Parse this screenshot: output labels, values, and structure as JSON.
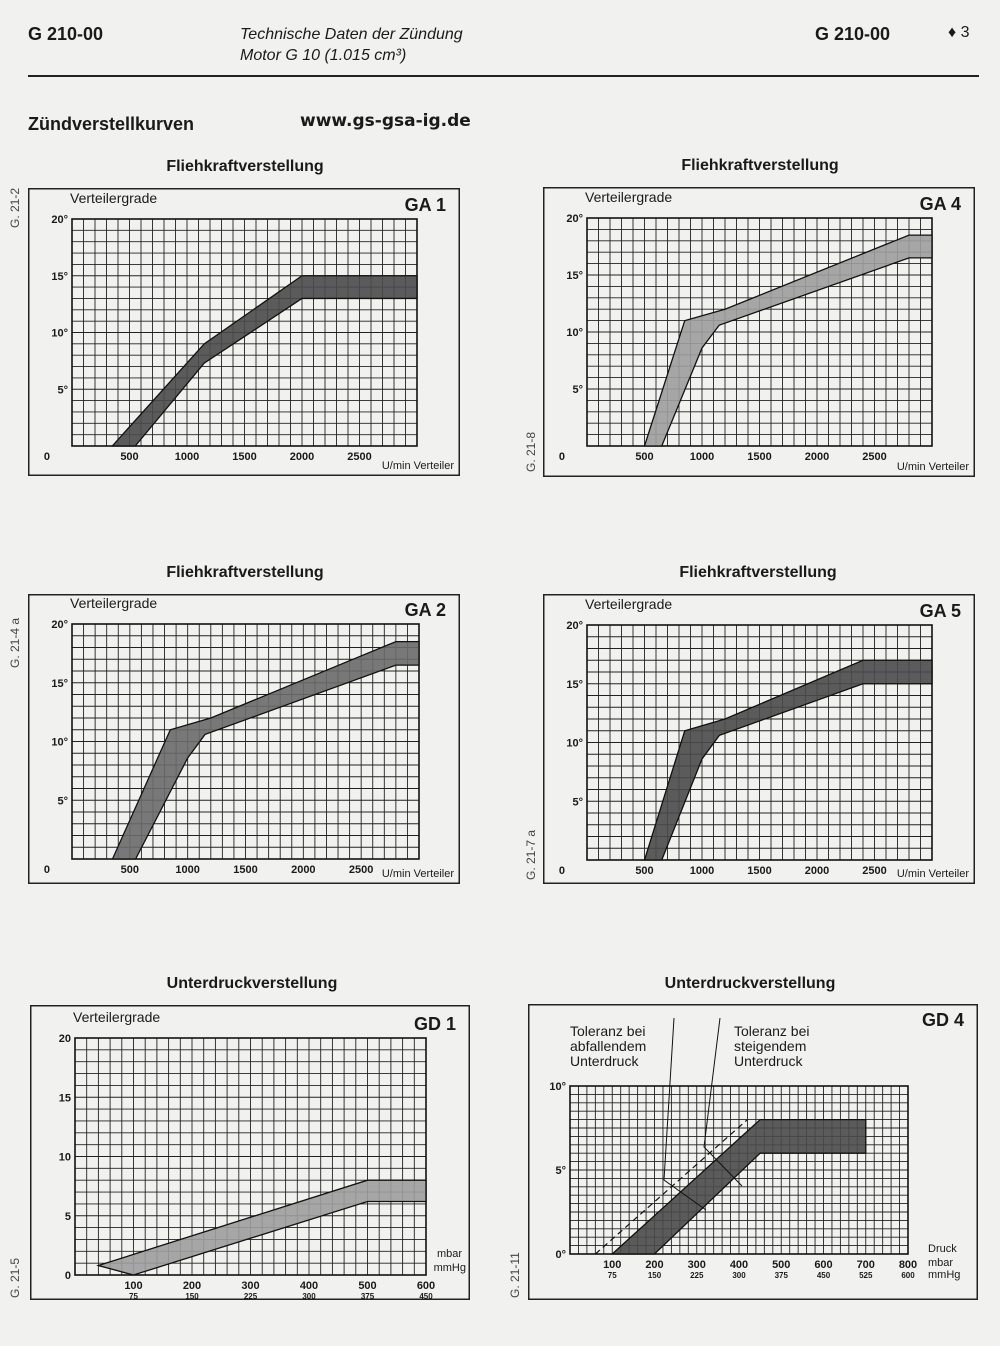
{
  "header": {
    "code_left": "G 210-00",
    "subtitle_line1": "Technische Daten der Zündung",
    "subtitle_line2": "Motor G 10 (1.015 cm³)",
    "code_right": "G 210-00",
    "page_marker": "♦ 3"
  },
  "section_title": "Zündverstellkurven",
  "website": "www.gs-gsa-ig.de",
  "chart_data": [
    {
      "type": "area",
      "id": "GA1",
      "title": "Fliehkraftverstellung",
      "code": "GA 1",
      "ylabel": "Verteilergrade",
      "xlabel": "U/min Verteiler",
      "side_label": "G. 21-2",
      "xlim": [
        0,
        3000
      ],
      "ylim": [
        0,
        20
      ],
      "x_ticks": [
        "0",
        "500",
        "1000",
        "1500",
        "2000",
        "2500"
      ],
      "x_tick_values": [
        0,
        500,
        1000,
        1500,
        2000,
        2500
      ],
      "y_ticks": [
        "20°",
        "15°",
        "10°",
        "5°"
      ],
      "y_tick_values": [
        20,
        15,
        10,
        5
      ],
      "series": [
        {
          "upper": [
            [
              350,
              0
            ],
            [
              1150,
              9
            ],
            [
              2000,
              15
            ],
            [
              3000,
              15
            ]
          ],
          "lower": [
            [
              550,
              0
            ],
            [
              1150,
              7.3
            ],
            [
              2000,
              13
            ],
            [
              3000,
              13
            ]
          ],
          "shade": "dark"
        }
      ]
    },
    {
      "type": "area",
      "id": "GA4",
      "title": "Fliehkraftverstellung",
      "code": "GA 4",
      "ylabel": "Verteilergrade",
      "xlabel": "U/min Verteiler",
      "side_label": "G. 21-8",
      "xlim": [
        0,
        3000
      ],
      "ylim": [
        0,
        20
      ],
      "x_ticks": [
        "0",
        "500",
        "1000",
        "1500",
        "2000",
        "2500"
      ],
      "x_tick_values": [
        0,
        500,
        1000,
        1500,
        2000,
        2500
      ],
      "y_ticks": [
        "20°",
        "15°",
        "10°",
        "5°"
      ],
      "y_tick_values": [
        20,
        15,
        10,
        5
      ],
      "series": [
        {
          "upper": [
            [
              500,
              0
            ],
            [
              850,
              11
            ],
            [
              1200,
              12
            ],
            [
              2800,
              18.5
            ],
            [
              3000,
              18.5
            ]
          ],
          "lower": [
            [
              650,
              0
            ],
            [
              1000,
              8.6
            ],
            [
              1150,
              10.6
            ],
            [
              2800,
              16.5
            ],
            [
              3000,
              16.5
            ]
          ],
          "shade": "light"
        }
      ]
    },
    {
      "type": "area",
      "id": "GA2",
      "title": "Fliehkraftverstellung",
      "code": "GA 2",
      "ylabel": "Verteilergrade",
      "xlabel": "U/min Verteiler",
      "side_label": "G. 21-4 a",
      "xlim": [
        0,
        3000
      ],
      "ylim": [
        0,
        20
      ],
      "x_ticks": [
        "0",
        "500",
        "1000",
        "1500",
        "2000",
        "2500"
      ],
      "x_tick_values": [
        0,
        500,
        1000,
        1500,
        2000,
        2500
      ],
      "y_ticks": [
        "20°",
        "15°",
        "10°",
        "5°"
      ],
      "y_tick_values": [
        20,
        15,
        10,
        5
      ],
      "series": [
        {
          "upper": [
            [
              350,
              0
            ],
            [
              850,
              11
            ],
            [
              1200,
              12
            ],
            [
              2800,
              18.5
            ],
            [
              3000,
              18.5
            ]
          ],
          "lower": [
            [
              550,
              0
            ],
            [
              1000,
              8.6
            ],
            [
              1150,
              10.6
            ],
            [
              2800,
              16.5
            ],
            [
              3000,
              16.5
            ]
          ],
          "shade": "mid"
        }
      ]
    },
    {
      "type": "area",
      "id": "GA5",
      "title": "Fliehkraftverstellung",
      "code": "GA 5",
      "ylabel": "Verteilergrade",
      "xlabel": "U/min Verteiler",
      "side_label": "G. 21-7 a",
      "xlim": [
        0,
        3000
      ],
      "ylim": [
        0,
        20
      ],
      "x_ticks": [
        "0",
        "500",
        "1000",
        "1500",
        "2000",
        "2500"
      ],
      "x_tick_values": [
        0,
        500,
        1000,
        1500,
        2000,
        2500
      ],
      "y_ticks": [
        "20°",
        "15°",
        "10°",
        "5°"
      ],
      "y_tick_values": [
        20,
        15,
        10,
        5
      ],
      "series": [
        {
          "upper": [
            [
              500,
              0
            ],
            [
              850,
              11
            ],
            [
              1200,
              12
            ],
            [
              2400,
              17
            ],
            [
              3000,
              17
            ]
          ],
          "lower": [
            [
              650,
              0
            ],
            [
              1000,
              8.6
            ],
            [
              1150,
              10.6
            ],
            [
              2400,
              15
            ],
            [
              3000,
              15
            ]
          ],
          "shade": "dark"
        }
      ]
    },
    {
      "type": "area",
      "id": "GD1",
      "title": "Unterdruckverstellung",
      "code": "GD 1",
      "ylabel": "Verteilergrade",
      "xlabel": "mbar",
      "xlabel2": "mmHg",
      "side_label": "G. 21-5",
      "xlim": [
        0,
        600
      ],
      "ylim": [
        0,
        20
      ],
      "x_ticks": [
        "100",
        "200",
        "300",
        "400",
        "500",
        "600"
      ],
      "x_tick_values": [
        100,
        200,
        300,
        400,
        500,
        600
      ],
      "x_ticks2": [
        "75",
        "150",
        "225",
        "300",
        "375",
        "450"
      ],
      "y_ticks": [
        "20",
        "15",
        "10",
        "5",
        "0"
      ],
      "y_tick_values": [
        20,
        15,
        10,
        5,
        0
      ],
      "series": [
        {
          "upper": [
            [
              40,
              0.8
            ],
            [
              500,
              8
            ],
            [
              600,
              8
            ]
          ],
          "lower": [
            [
              100,
              0
            ],
            [
              500,
              6.2
            ],
            [
              600,
              6.2
            ]
          ],
          "shade": "light"
        }
      ]
    },
    {
      "type": "area",
      "id": "GD4",
      "title": "Unterdruckverstellung",
      "code": "GD 4",
      "xlabel": "Druck",
      "xlabel2": "mbar",
      "xlabel3": "mmHg",
      "side_label": "G. 21-11",
      "xlim": [
        0,
        800
      ],
      "ylim": [
        0,
        10
      ],
      "x_ticks": [
        "100",
        "200",
        "300",
        "400",
        "500",
        "600",
        "700",
        "800"
      ],
      "x_tick_values": [
        100,
        200,
        300,
        400,
        500,
        600,
        700,
        800
      ],
      "x_ticks2": [
        "75",
        "150",
        "225",
        "300",
        "375",
        "450",
        "525",
        "600"
      ],
      "y_ticks": [
        "10°",
        "5°",
        "0°"
      ],
      "y_tick_values": [
        10,
        5,
        0
      ],
      "annotation_left": [
        "Toleranz bei",
        "abfallendem",
        "Unterdruck"
      ],
      "annotation_right": [
        "Toleranz bei",
        "steigendem",
        "Unterdruck"
      ],
      "series": [
        {
          "upper": [
            [
              100,
              0
            ],
            [
              450,
              8
            ],
            [
              700,
              8
            ]
          ],
          "lower": [
            [
              200,
              0
            ],
            [
              450,
              6
            ],
            [
              700,
              6
            ]
          ],
          "shade": "dark"
        }
      ],
      "dashed_line": [
        [
          60,
          0
        ],
        [
          420,
          8
        ]
      ]
    }
  ]
}
